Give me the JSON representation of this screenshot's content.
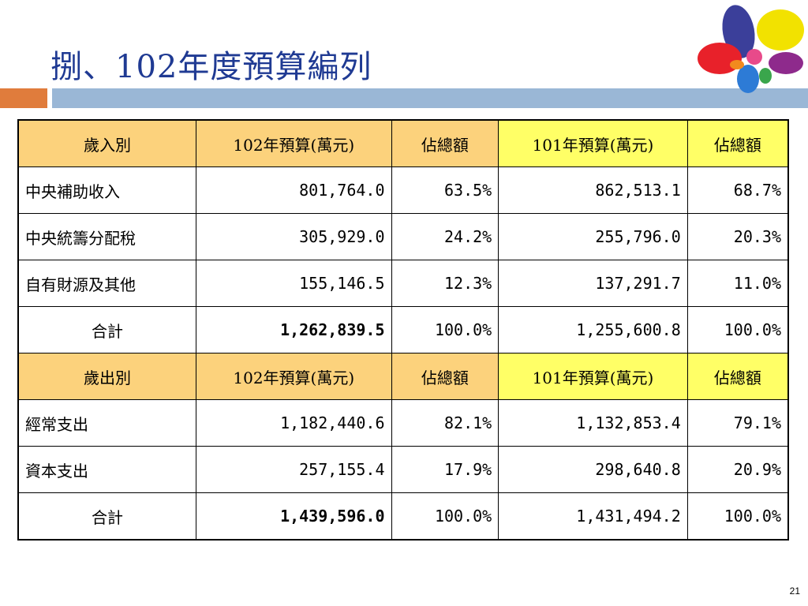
{
  "slide": {
    "title": "捌、102年度預算編列",
    "page_number": "21"
  },
  "revenue_header": {
    "category": "歲入別",
    "budget_102": "102年預算(萬元)",
    "share_102": "佔總額",
    "budget_101": "101年預算(萬元)",
    "share_101": "佔總額"
  },
  "revenue_rows": [
    {
      "label": "中央補助收入",
      "budget_102": "801,764.0",
      "share_102": "63.5%",
      "budget_101": "862,513.1",
      "share_101": "68.7%"
    },
    {
      "label": "中央統籌分配稅",
      "budget_102": "305,929.0",
      "share_102": "24.2%",
      "budget_101": "255,796.0",
      "share_101": "20.3%"
    },
    {
      "label": "自有財源及其他",
      "budget_102": "155,146.5",
      "share_102": "12.3%",
      "budget_101": "137,291.7",
      "share_101": "11.0%"
    },
    {
      "label": "合計",
      "budget_102": "1,262,839.5",
      "share_102": "100.0%",
      "budget_101": "1,255,600.8",
      "share_101": "100.0%"
    }
  ],
  "expenditure_header": {
    "category": "歲出別",
    "budget_102": "102年預算(萬元)",
    "share_102": "佔總額",
    "budget_101": "101年預算(萬元)",
    "share_101": "佔總額"
  },
  "expenditure_rows": [
    {
      "label": "經常支出",
      "budget_102": "1,182,440.6",
      "share_102": "82.1%",
      "budget_101": "1,132,853.4",
      "share_101": "79.1%"
    },
    {
      "label": "資本支出",
      "budget_102": "257,155.4",
      "share_102": "17.9%",
      "budget_101": "298,640.8",
      "share_101": "20.9%"
    },
    {
      "label": "合計",
      "budget_102": "1,439,596.0",
      "share_102": "100.0%",
      "budget_101": "1,431,494.2",
      "share_101": "100.0%"
    }
  ],
  "colors": {
    "title": "#1f3a93",
    "header_orange": "#fcd27c",
    "header_yellow": "#ffff66",
    "accent_bar_orange": "#e07c3c",
    "accent_bar_blue": "#9ab7d6"
  },
  "logo": {
    "icon": "flower-petals-logo-icon"
  }
}
